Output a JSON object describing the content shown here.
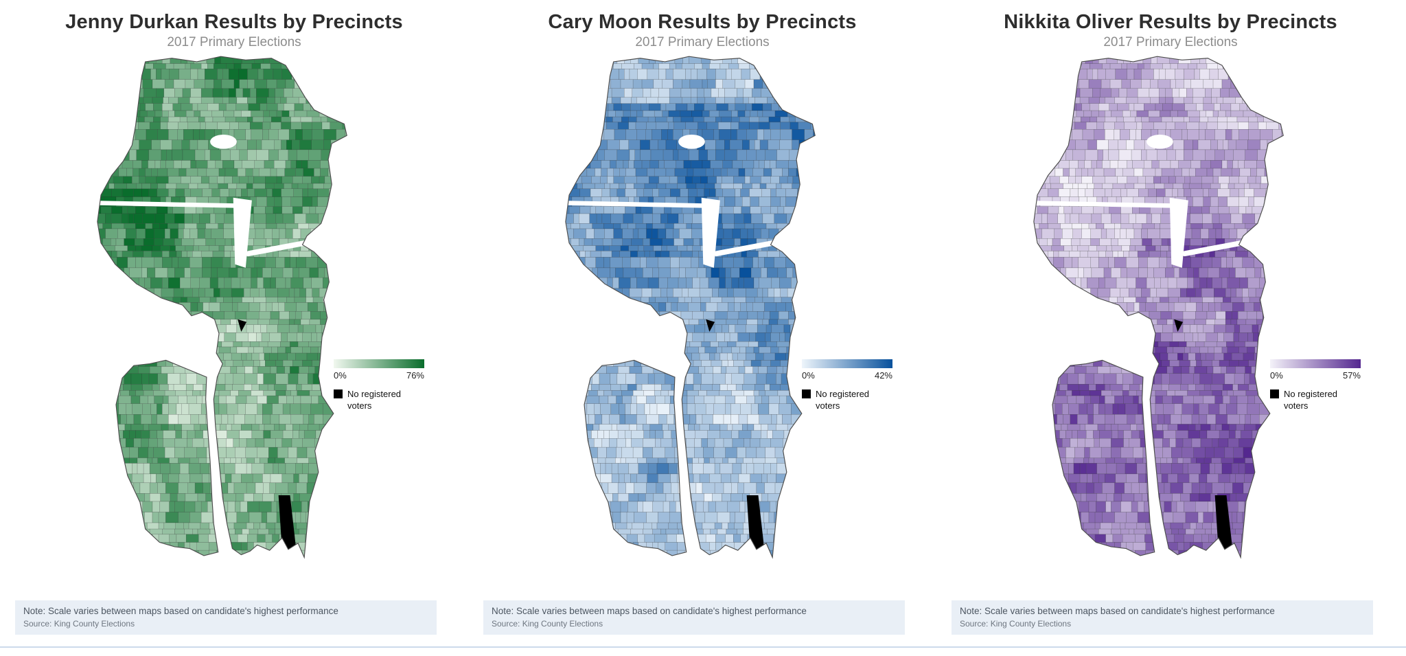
{
  "panels": [
    {
      "title": "Jenny Durkan Results by Precincts",
      "subtitle": "2017 Primary Elections",
      "scale": {
        "min_label": "0%",
        "max_label": "76%",
        "color_start": "#f1f8ef",
        "color_end": "#0a6d2c"
      },
      "no_voters_label": "No registered voters",
      "no_voters_color": "#000000",
      "note": "Note: Scale varies between maps based on candidate's highest performance",
      "source": "Source: King County Elections"
    },
    {
      "title": "Cary Moon Results by Precincts",
      "subtitle": "2017 Primary Elections",
      "scale": {
        "min_label": "0%",
        "max_label": "42%",
        "color_start": "#eef5fb",
        "color_end": "#08519c"
      },
      "no_voters_label": "No registered voters",
      "no_voters_color": "#000000",
      "note": "Note: Scale varies between maps based on candidate's highest performance",
      "source": "Source: King County Elections"
    },
    {
      "title": "Nikkita Oliver Results by Precincts",
      "subtitle": "2017 Primary Elections",
      "scale": {
        "min_label": "0%",
        "max_label": "57%",
        "color_start": "#f4f2f9",
        "color_end": "#54278f"
      },
      "no_voters_label": "No registered voters",
      "no_voters_color": "#000000",
      "note": "Note: Scale varies between maps based on candidate's highest performance",
      "source": "Source: King County Elections"
    }
  ],
  "chart_data": [
    {
      "type": "heatmap",
      "subtype": "choropleth",
      "title": "Jenny Durkan Results by Precincts",
      "subtitle": "2017 Primary Elections",
      "geography": "Seattle precincts",
      "value_unit": "%",
      "value_range": [
        0,
        76
      ],
      "legend": {
        "min_label": "0%",
        "max_label": "76%",
        "no_data_label": "No registered voters"
      },
      "color_scale": [
        "#f1f8ef",
        "#0a6d2c"
      ],
      "note": "Note: Scale varies between maps based on candidate's highest performance",
      "source": "Source: King County Elections"
    },
    {
      "type": "heatmap",
      "subtype": "choropleth",
      "title": "Cary Moon Results by Precincts",
      "subtitle": "2017 Primary Elections",
      "geography": "Seattle precincts",
      "value_unit": "%",
      "value_range": [
        0,
        42
      ],
      "legend": {
        "min_label": "0%",
        "max_label": "42%",
        "no_data_label": "No registered voters"
      },
      "color_scale": [
        "#eef5fb",
        "#08519c"
      ],
      "note": "Note: Scale varies between maps based on candidate's highest performance",
      "source": "Source: King County Elections"
    },
    {
      "type": "heatmap",
      "subtype": "choropleth",
      "title": "Nikkita Oliver Results by Precincts",
      "subtitle": "2017 Primary Elections",
      "geography": "Seattle precincts",
      "value_unit": "%",
      "value_range": [
        0,
        57
      ],
      "legend": {
        "min_label": "0%",
        "max_label": "57%",
        "no_data_label": "No registered voters"
      },
      "color_scale": [
        "#f4f2f9",
        "#54278f"
      ],
      "note": "Note: Scale varies between maps based on candidate's highest performance",
      "source": "Source: King County Elections"
    }
  ]
}
